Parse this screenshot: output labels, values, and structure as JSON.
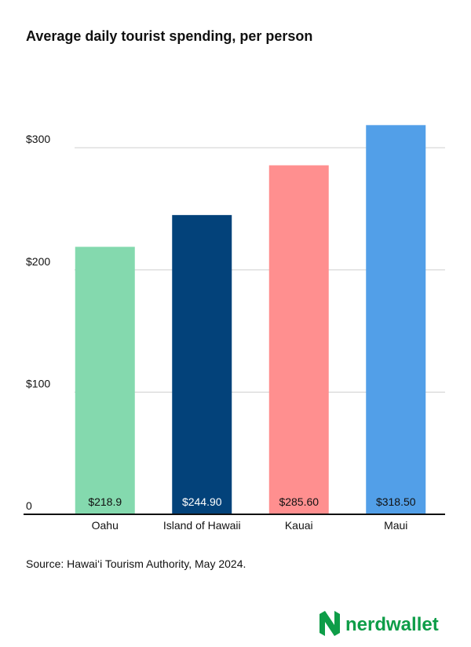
{
  "chart_data": {
    "type": "bar",
    "title": "Average daily tourist spending, per person",
    "categories": [
      "Oahu",
      "Island of Hawaii",
      "Kauai",
      "Maui"
    ],
    "values": [
      218.9,
      244.9,
      285.6,
      318.5
    ],
    "value_labels": [
      "$218.9",
      "$244.90",
      "$285.60",
      "$318.50"
    ],
    "colors": [
      "#84d9ae",
      "#03427a",
      "#ff8f8f",
      "#529fe8"
    ],
    "ylim": [
      0,
      320
    ],
    "yticks": [
      {
        "value": 0,
        "label": "0"
      },
      {
        "value": 100,
        "label": "$100"
      },
      {
        "value": 200,
        "label": "$200"
      },
      {
        "value": 300,
        "label": "$300"
      }
    ],
    "grid": true,
    "source": "Source: Hawai‘i Tourism Authority, May 2024."
  },
  "brand": "nerdwallet"
}
